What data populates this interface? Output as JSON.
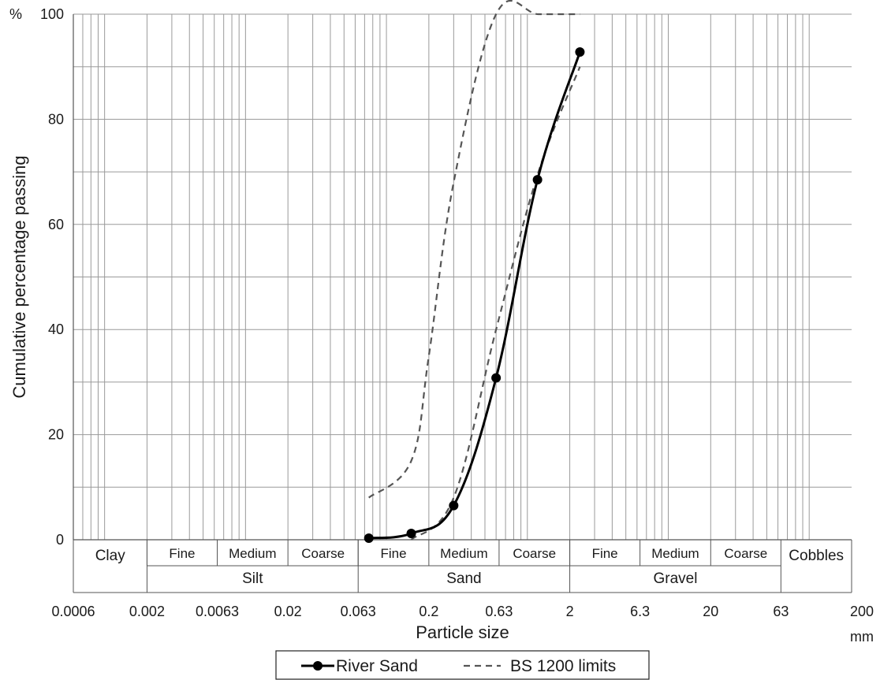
{
  "chart_data": {
    "type": "line",
    "xlabel": "Particle size",
    "x_unit": "mm",
    "ylabel": "Cumulative percentage passing",
    "y_unit": "%",
    "x_scale": "log",
    "xlim": [
      0.0006,
      200
    ],
    "ylim": [
      0,
      100
    ],
    "x_tick_labels": [
      "0.0006",
      "0.002",
      "0.0063",
      "0.02",
      "0.063",
      "0.2",
      "0.63",
      "2",
      "6.3",
      "20",
      "63",
      "200"
    ],
    "x_tick_values": [
      0.0006,
      0.002,
      0.0063,
      0.02,
      0.063,
      0.2,
      0.63,
      2,
      6.3,
      20,
      63,
      200
    ],
    "y_ticks": [
      0,
      20,
      40,
      60,
      80,
      100
    ],
    "grid": true,
    "legend_position": "bottom",
    "classification": {
      "main": [
        {
          "label": "Clay",
          "from": 0.0006,
          "to": 0.002
        },
        {
          "label": "Silt",
          "from": 0.002,
          "to": 0.063
        },
        {
          "label": "Sand",
          "from": 0.063,
          "to": 2
        },
        {
          "label": "Gravel",
          "from": 2,
          "to": 63
        },
        {
          "label": "Cobbles",
          "from": 63,
          "to": 200
        }
      ],
      "sub": [
        {
          "label": "Fine",
          "from": 0.002,
          "to": 0.0063
        },
        {
          "label": "Medium",
          "from": 0.0063,
          "to": 0.02
        },
        {
          "label": "Coarse",
          "from": 0.02,
          "to": 0.063
        },
        {
          "label": "Fine",
          "from": 0.063,
          "to": 0.2
        },
        {
          "label": "Medium",
          "from": 0.2,
          "to": 0.63
        },
        {
          "label": "Coarse",
          "from": 0.63,
          "to": 2
        },
        {
          "label": "Fine",
          "from": 2,
          "to": 6.3
        },
        {
          "label": "Medium",
          "from": 6.3,
          "to": 20
        },
        {
          "label": "Coarse",
          "from": 20,
          "to": 63
        }
      ]
    },
    "series": [
      {
        "name": "River Sand",
        "style": "solid-markers",
        "color": "#000000",
        "points": [
          {
            "x": 0.075,
            "y": 0.3
          },
          {
            "x": 0.15,
            "y": 1.2
          },
          {
            "x": 0.3,
            "y": 6.5
          },
          {
            "x": 0.6,
            "y": 30.8
          },
          {
            "x": 1.18,
            "y": 68.5
          },
          {
            "x": 2.36,
            "y": 92.8
          }
        ]
      },
      {
        "name": "BS 1200 limits",
        "style": "dashed",
        "color": "#555555",
        "segments": [
          [
            {
              "x": 0.075,
              "y": 8
            },
            {
              "x": 0.15,
              "y": 15
            },
            {
              "x": 0.2,
              "y": 35
            },
            {
              "x": 0.3,
              "y": 68
            },
            {
              "x": 0.6,
              "y": 100
            },
            {
              "x": 1.2,
              "y": 100
            },
            {
              "x": 2.36,
              "y": 100
            }
          ],
          [
            {
              "x": 0.15,
              "y": 0
            },
            {
              "x": 0.3,
              "y": 8
            },
            {
              "x": 0.6,
              "y": 40
            },
            {
              "x": 1.2,
              "y": 70
            },
            {
              "x": 2.36,
              "y": 90
            }
          ]
        ]
      }
    ]
  }
}
